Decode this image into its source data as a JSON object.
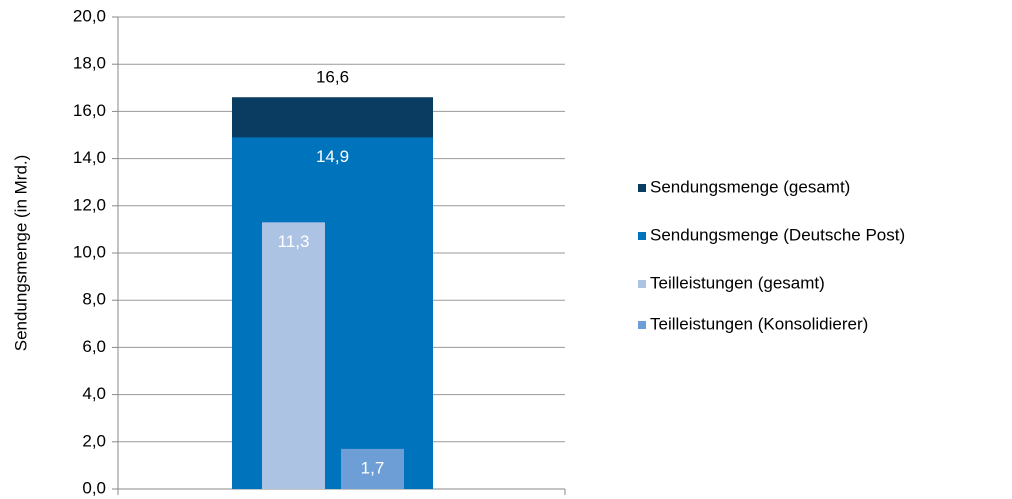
{
  "chart_data": {
    "type": "bar",
    "ylabel": "Sendungsmenge (in Mrd.)",
    "categories": [
      null
    ],
    "series": [
      {
        "name": "Sendungsmenge (gesamt)",
        "color": "#0a3c62",
        "label_color": "#000000",
        "values": [
          16.6
        ],
        "value_labels": [
          "16,6"
        ]
      },
      {
        "name": "Sendungsmenge (Deutsche Post)",
        "color": "#0073bd",
        "label_color": "#ffffff",
        "values": [
          14.9
        ],
        "value_labels": [
          "14,9"
        ]
      },
      {
        "name": "Teilleistungen (gesamt)",
        "color": "#adc3e4",
        "label_color": "#ffffff",
        "values": [
          11.3
        ],
        "value_labels": [
          "11,3"
        ]
      },
      {
        "name": "Teilleistungen (Konsolidierer)",
        "color": "#6d9fd6",
        "label_color": "#ffffff",
        "values": [
          1.7
        ],
        "value_labels": [
          "1,7"
        ]
      }
    ],
    "ylim": [
      0,
      20
    ],
    "yticks": [
      {
        "value": 0,
        "label": "0,0"
      },
      {
        "value": 2,
        "label": "2,0"
      },
      {
        "value": 4,
        "label": "4,0"
      },
      {
        "value": 6,
        "label": "6,0"
      },
      {
        "value": 8,
        "label": "8,0"
      },
      {
        "value": 10,
        "label": "10,0"
      },
      {
        "value": 12,
        "label": "12,0"
      },
      {
        "value": 14,
        "label": "14,0"
      },
      {
        "value": 16,
        "label": "16,0"
      },
      {
        "value": 18,
        "label": "18,0"
      },
      {
        "value": 20,
        "label": "20,0"
      }
    ],
    "grid": true,
    "legend": "right"
  }
}
